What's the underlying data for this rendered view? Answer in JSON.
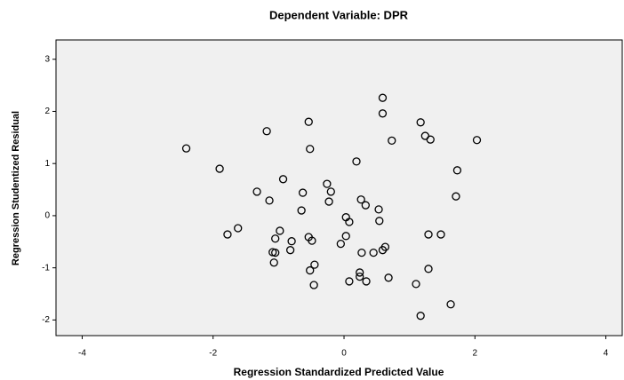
{
  "chart_data": {
    "type": "scatter",
    "title": "Dependent Variable: DPR",
    "x_label": "Regression Standardized Predicted Value",
    "y_label": "Regression Studentized Residual",
    "x": [
      -2.41,
      -1.9,
      -1.18,
      -0.52,
      0.59,
      0.59,
      -0.54,
      1.17,
      1.24,
      1.32,
      2.03,
      0.73,
      0.19,
      1.73,
      1.71,
      -1.33,
      -0.93,
      -1.14,
      -0.63,
      -0.26,
      -0.2,
      -0.23,
      -0.65,
      0.26,
      0.33,
      0.53,
      0.54,
      0.03,
      0.08,
      -1.62,
      -1.78,
      -0.98,
      -1.05,
      -0.8,
      -0.54,
      -0.49,
      -0.05,
      0.03,
      0.63,
      0.59,
      0.27,
      0.45,
      1.29,
      1.48,
      -1.09,
      -1.05,
      -0.82,
      -0.45,
      -1.07,
      -0.52,
      -0.46,
      0.08,
      0.24,
      0.24,
      0.34,
      0.68,
      1.29,
      1.1,
      1.17,
      1.63
    ],
    "values": [
      1.29,
      0.9,
      1.62,
      1.28,
      2.26,
      1.96,
      1.8,
      1.79,
      1.53,
      1.46,
      1.45,
      1.44,
      1.04,
      0.87,
      0.37,
      0.46,
      0.7,
      0.29,
      0.44,
      0.61,
      0.46,
      0.27,
      0.1,
      0.31,
      0.2,
      0.12,
      -0.1,
      -0.03,
      -0.12,
      -0.24,
      -0.36,
      -0.29,
      -0.44,
      -0.49,
      -0.41,
      -0.48,
      -0.54,
      -0.39,
      -0.6,
      -0.66,
      -0.71,
      -0.71,
      -0.36,
      -0.36,
      -0.7,
      -0.71,
      -0.66,
      -0.94,
      -0.9,
      -1.05,
      -1.33,
      -1.26,
      -1.09,
      -1.17,
      -1.26,
      -1.19,
      -1.02,
      -1.31,
      -1.92,
      -1.7
    ],
    "xlim": [
      -4.4,
      4.25
    ],
    "xticks": [
      -4,
      -2,
      0,
      2,
      4
    ],
    "ylim": [
      -2.3,
      3.37
    ],
    "yticks": [
      -2,
      -1,
      0,
      1,
      2,
      3
    ],
    "plot_background": "#f0f0f0",
    "color": "#000000"
  }
}
